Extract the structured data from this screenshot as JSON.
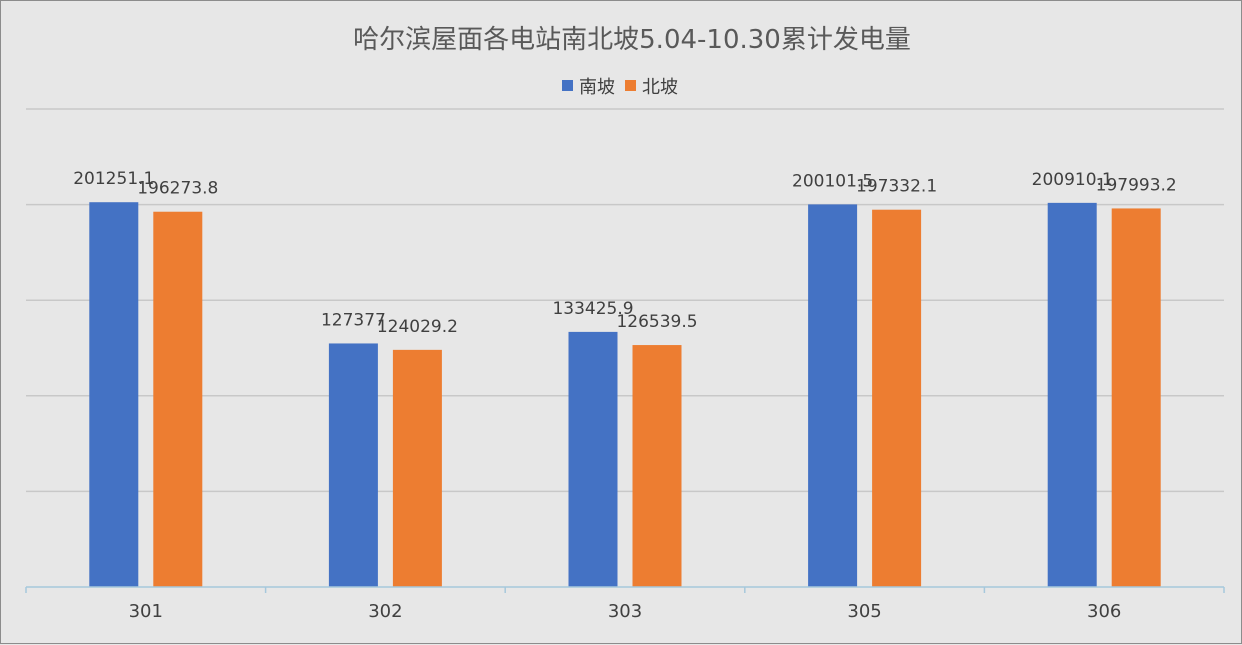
{
  "chart_data": {
    "type": "bar",
    "title": "哈尔滨屋面各电站南北坡5.04-10.30累计发电量",
    "categories": [
      "301",
      "302",
      "303",
      "305",
      "306"
    ],
    "series": [
      {
        "name": "南坡",
        "color": "#4472c4",
        "values": [
          201251.1,
          127377,
          133425.9,
          200101.5,
          200910.1
        ]
      },
      {
        "name": "北坡",
        "color": "#ed7d31",
        "values": [
          196273.8,
          124029.2,
          126539.5,
          197332.1,
          197993.2
        ]
      }
    ],
    "ylim": [
      0,
      250000
    ],
    "grid": true,
    "legend": "top-center",
    "y_tick_labels_shown": false,
    "colors": {
      "background": "#e7e7e7",
      "gridline": "#c8c8c8",
      "axis": "#a6c8dc"
    }
  }
}
